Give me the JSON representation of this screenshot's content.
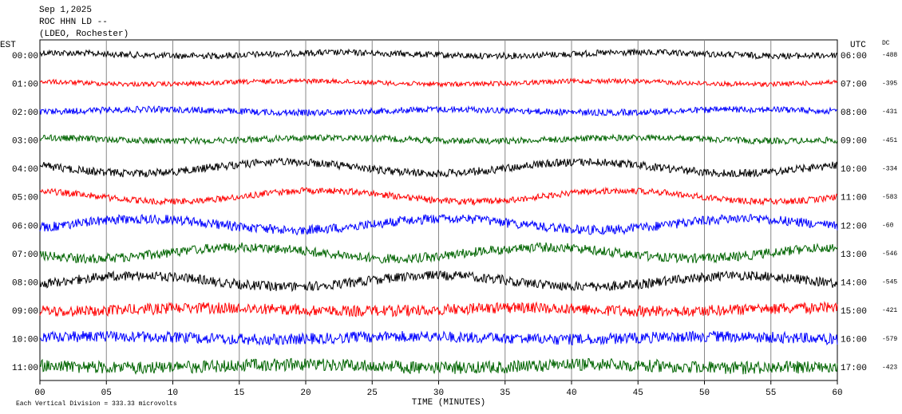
{
  "header": {
    "date": "Sep 1,2025",
    "station": "ROC HHN LD --",
    "location": "(LDEO, Rochester)"
  },
  "left_axis_title": "EST",
  "right_axis_title": "UTC",
  "dc_title": "DC",
  "rows": [
    {
      "est": "00:00",
      "utc": "06:00",
      "dc": "-488"
    },
    {
      "est": "01:00",
      "utc": "07:00",
      "dc": "-395"
    },
    {
      "est": "02:00",
      "utc": "08:00",
      "dc": "-431"
    },
    {
      "est": "03:00",
      "utc": "09:00",
      "dc": "-451"
    },
    {
      "est": "04:00",
      "utc": "10:00",
      "dc": "-334"
    },
    {
      "est": "05:00",
      "utc": "11:00",
      "dc": "-583"
    },
    {
      "est": "06:00",
      "utc": "12:00",
      "dc": "-60"
    },
    {
      "est": "07:00",
      "utc": "13:00",
      "dc": "-546"
    },
    {
      "est": "08:00",
      "utc": "14:00",
      "dc": "-545"
    },
    {
      "est": "09:00",
      "utc": "15:00",
      "dc": "-421"
    },
    {
      "est": "10:00",
      "utc": "16:00",
      "dc": "-579"
    },
    {
      "est": "11:00",
      "utc": "17:00",
      "dc": "-423"
    }
  ],
  "trace_colors": [
    "#000000",
    "#ff0000",
    "#0000ff",
    "#006400"
  ],
  "x_ticks": [
    "00",
    "05",
    "10",
    "15",
    "20",
    "25",
    "30",
    "35",
    "40",
    "45",
    "50",
    "55",
    "60"
  ],
  "x_axis_title": "TIME (MINUTES)",
  "footer": "Each Vertical Division =  333.33 microvolts"
}
